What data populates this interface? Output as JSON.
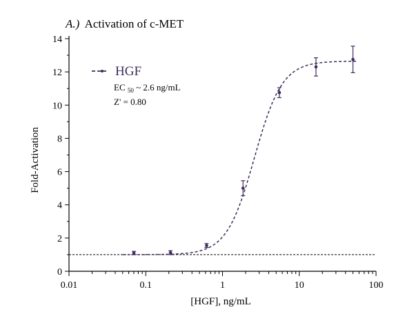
{
  "chart_data": {
    "type": "scatter",
    "title_prefix": "A.)",
    "title": "Activation of c-MET",
    "xlabel": "[HGF], ng/mL",
    "ylabel": "Fold-Activation",
    "xscale": "log",
    "xlim": [
      0.01,
      100
    ],
    "ylim": [
      0,
      14
    ],
    "x_ticks": [
      0.01,
      0.1,
      1,
      10,
      100
    ],
    "x_tick_labels": [
      "0.01",
      "0.1",
      "1",
      "10",
      "100"
    ],
    "y_ticks": [
      0,
      2,
      4,
      6,
      8,
      10,
      12,
      14
    ],
    "y_tick_labels": [
      "0",
      "2",
      "4",
      "6",
      "8",
      "10",
      "12",
      "14"
    ],
    "grid": false,
    "legend_position": "top-left",
    "baseline": 1.0,
    "series": [
      {
        "name": "HGF",
        "color": "#3d2b5a",
        "x": [
          0.07,
          0.21,
          0.62,
          1.85,
          5.5,
          16.5,
          50
        ],
        "y": [
          1.1,
          1.12,
          1.55,
          5.0,
          10.75,
          12.3,
          12.75
        ],
        "yerr": [
          0.1,
          0.12,
          0.12,
          0.45,
          0.3,
          0.55,
          0.8
        ],
        "fit": {
          "model": "4PL",
          "bottom": 1.0,
          "top": 12.65,
          "ec50": 2.6,
          "hill": 2.4
        }
      }
    ],
    "annotations": {
      "ec50_prefix": "EC",
      "ec50_sub": "50",
      "ec50_suffix": " ~ 2.6 ng/mL",
      "zprime": "Z' = 0.80"
    }
  }
}
